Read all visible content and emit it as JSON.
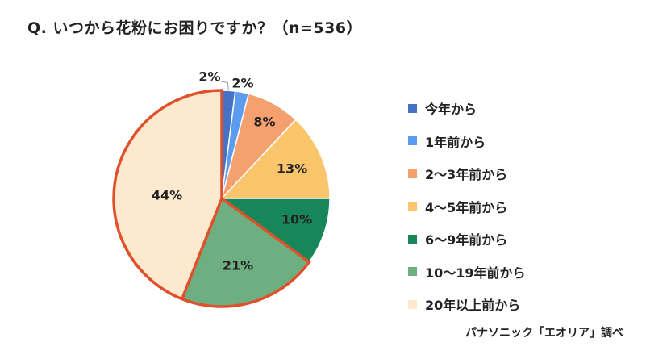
{
  "title": "Q. いつから花粉にお困りですか？（n=536）",
  "source": "パナソニック「エオリア」調べ",
  "chart_data": {
    "type": "pie",
    "categories": [
      "今年から",
      "1年前から",
      "2〜3年前から",
      "4〜5年前から",
      "6〜9年前から",
      "10〜19年前から",
      "20年以上前から"
    ],
    "values": [
      2,
      2,
      8,
      13,
      10,
      21,
      44
    ],
    "labels": [
      "2%",
      "2%",
      "8%",
      "13%",
      "10%",
      "21%",
      "44%"
    ],
    "colors": [
      "#4472C4",
      "#5B9BF0",
      "#F4A06F",
      "#FBC56B",
      "#17875A",
      "#6DAF80",
      "#FCE9CE"
    ],
    "highlight_color": "#E0502B",
    "highlighted": [
      5,
      6
    ],
    "legend_position": "right"
  }
}
